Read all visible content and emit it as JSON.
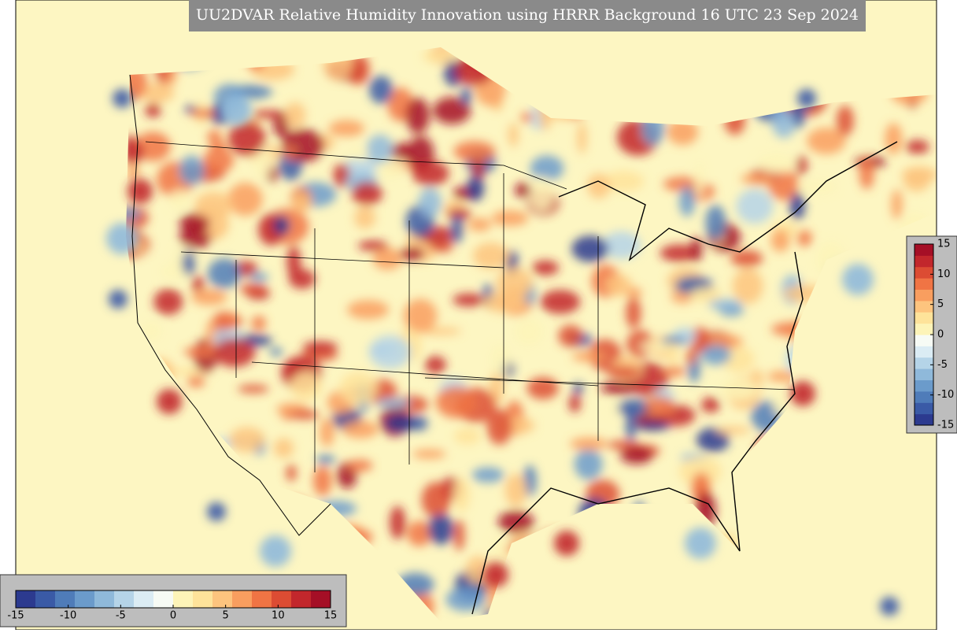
{
  "title": "UU2DVAR Relative Humidity Innovation using HRRR Background 16 UTC 23 Sep 2024",
  "colorbar": {
    "range": [
      -15,
      15
    ],
    "ticks": [
      -15,
      -10,
      -5,
      0,
      5,
      10,
      15
    ],
    "colors": [
      "#2c3a8f",
      "#3a5aa6",
      "#4f7cb9",
      "#6b9bcb",
      "#8fb9da",
      "#b5d4e8",
      "#dbecf4",
      "#f7fbf5",
      "#fdf4b8",
      "#fee39a",
      "#fdc47e",
      "#f99e5f",
      "#f07444",
      "#dc4c33",
      "#c2272c",
      "#a50f26"
    ]
  }
}
